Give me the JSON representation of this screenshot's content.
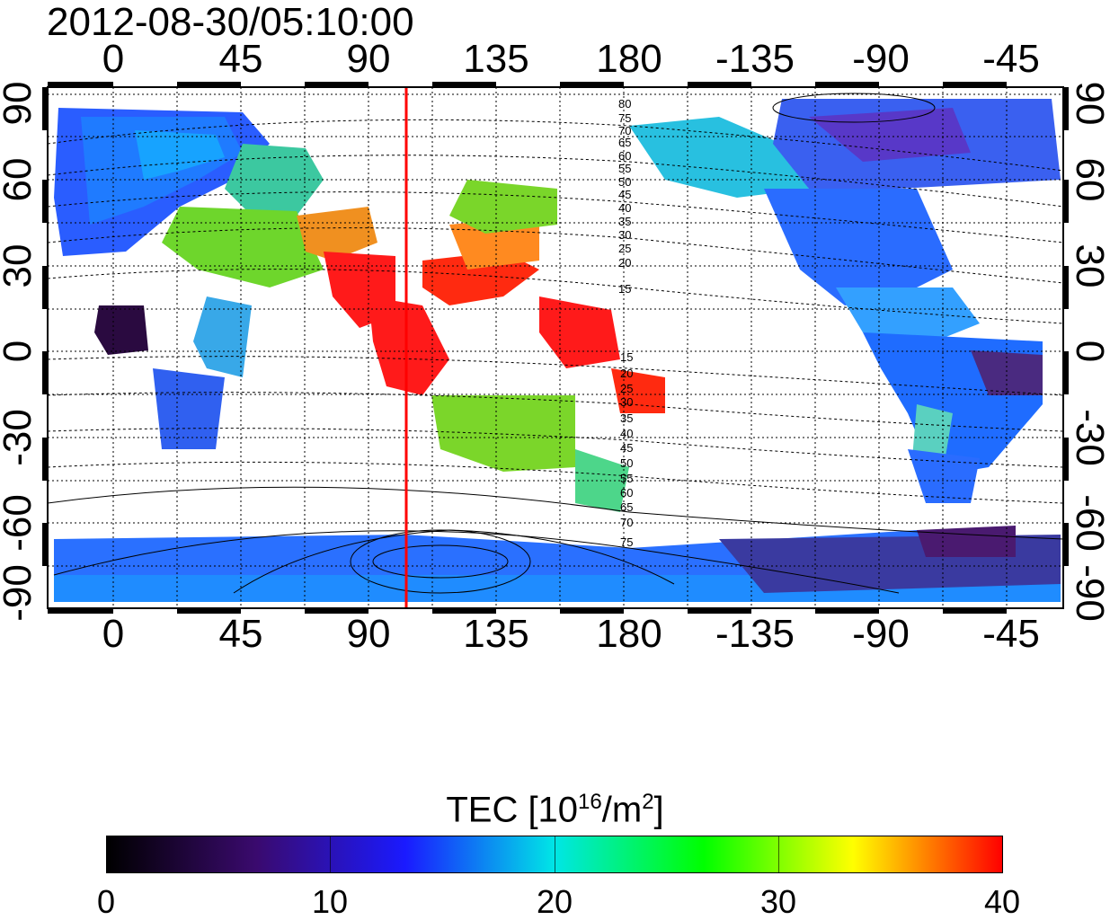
{
  "title": "2012-08-30/05:10:00",
  "lon_labels": [
    "0",
    "45",
    "90",
    "135",
    "180",
    "-135",
    "-90",
    "-45"
  ],
  "lat_labels": [
    "90",
    "60",
    "30",
    "0",
    "-30",
    "-60",
    "-90"
  ],
  "contour_labels_north": [
    "80",
    "75",
    "70",
    "65",
    "60",
    "55",
    "50",
    "45",
    "40",
    "35",
    "30",
    "25",
    "20",
    "15"
  ],
  "contour_labels_south": [
    "15",
    "20",
    "25",
    "30",
    "35",
    "40",
    "45",
    "50",
    "55",
    "60",
    "65",
    "70",
    "75"
  ],
  "colorbar": {
    "title_prefix": "TEC  [10",
    "title_exp1": "16",
    "title_mid": "/m",
    "title_exp2": "2",
    "title_suffix": "]",
    "ticks": [
      "0",
      "10",
      "20",
      "30",
      "40"
    ],
    "min": 0,
    "max": 40,
    "colors": [
      "#000000",
      "#3a0a6e",
      "#1a1aff",
      "#00e6e6",
      "#00ff00",
      "#ffff00",
      "#ff0000"
    ]
  },
  "terminator_longitude": 103,
  "line_color": "#ff0000"
}
